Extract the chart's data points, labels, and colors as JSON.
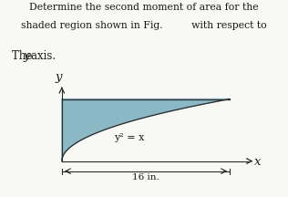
{
  "title_line1": "Determine the second moment of area for the",
  "title_line2": "shaded region shown in Fig.         with respect to",
  "subtitle_pre": "The ",
  "subtitle_y": "y",
  "subtitle_post": "-axis.",
  "equation": "y² = x",
  "dimension_label": "16 in.",
  "x_max": 16,
  "y_max": 4,
  "shade_color": "#8ab8c5",
  "shade_alpha": 1.0,
  "background_color": "#f8f8f4",
  "text_color": "#1a1a1a",
  "title_fontsize": 7.8,
  "subtitle_fontsize": 8.5,
  "label_fontsize": 8.0,
  "axis_label_fontsize": 9.5,
  "eq_fontsize": 8.0
}
